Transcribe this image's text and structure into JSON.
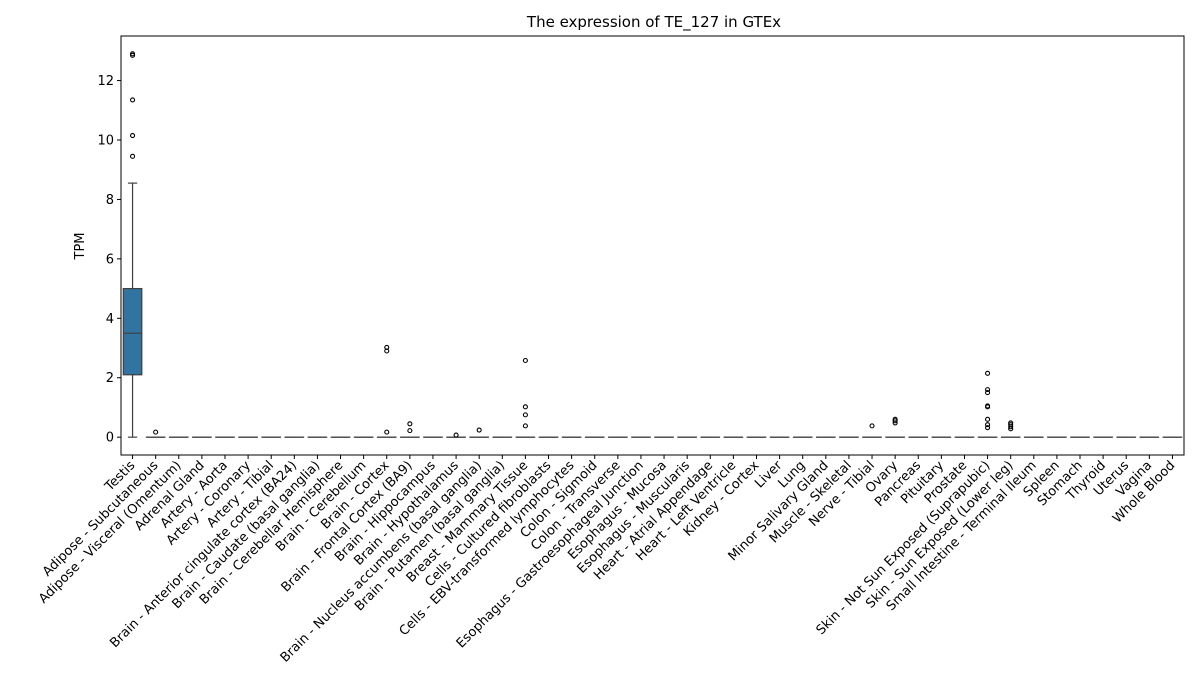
{
  "chart_data": {
    "type": "box",
    "title": "The expression of TE_127 in GTEx",
    "xlabel": "",
    "ylabel": "TPM",
    "ylim": [
      -0.6,
      13.5
    ],
    "yticks": [
      0,
      2,
      4,
      6,
      8,
      10,
      12
    ],
    "grid": false,
    "legend": "none",
    "colors": {
      "box_fill": "#3274a1",
      "box_edge": "#3f3f3f",
      "median": "#3f3f3f",
      "flier": "#000000"
    },
    "categories": [
      "Testis",
      "Adipose - Subcutaneous",
      "Adipose - Visceral (Omentum)",
      "Adrenal Gland",
      "Artery - Aorta",
      "Artery - Coronary",
      "Artery - Tibial",
      "Brain - Anterior cingulate cortex (BA24)",
      "Brain - Caudate (basal ganglia)",
      "Brain - Cerebellar Hemisphere",
      "Brain - Cerebellum",
      "Brain - Cortex",
      "Brain - Frontal Cortex (BA9)",
      "Brain - Hippocampus",
      "Brain - Hypothalamus",
      "Brain - Nucleus accumbens (basal ganglia)",
      "Brain - Putamen (basal ganglia)",
      "Breast - Mammary Tissue",
      "Cells - Cultured fibroblasts",
      "Cells - EBV-transformed lymphocytes",
      "Colon - Sigmoid",
      "Colon - Transverse",
      "Esophagus - Gastroesophageal Junction",
      "Esophagus - Mucosa",
      "Esophagus - Muscularis",
      "Heart - Atrial Appendage",
      "Heart - Left Ventricle",
      "Kidney - Cortex",
      "Liver",
      "Lung",
      "Minor Salivary Gland",
      "Muscle - Skeletal",
      "Nerve - Tibial",
      "Ovary",
      "Pancreas",
      "Pituitary",
      "Prostate",
      "Skin - Not Sun Exposed (Suprapubic)",
      "Skin - Sun Exposed (Lower leg)",
      "Small Intestine - Terminal Ileum",
      "Spleen",
      "Stomach",
      "Thyroid",
      "Uterus",
      "Vagina",
      "Whole Blood"
    ],
    "boxes": [
      {
        "q1": 2.1,
        "median": 3.5,
        "q3": 5.0,
        "whisker_low": 0.0,
        "whisker_high": 8.55,
        "fliers": [
          9.45,
          10.15,
          11.35,
          12.85,
          12.9
        ]
      },
      {
        "q1": 0,
        "median": 0,
        "q3": 0,
        "whisker_low": 0,
        "whisker_high": 0,
        "fliers": [
          0.17
        ]
      },
      {
        "q1": 0,
        "median": 0,
        "q3": 0,
        "whisker_low": 0,
        "whisker_high": 0,
        "fliers": []
      },
      {
        "q1": 0,
        "median": 0,
        "q3": 0,
        "whisker_low": 0,
        "whisker_high": 0,
        "fliers": []
      },
      {
        "q1": 0,
        "median": 0,
        "q3": 0,
        "whisker_low": 0,
        "whisker_high": 0,
        "fliers": []
      },
      {
        "q1": 0,
        "median": 0,
        "q3": 0,
        "whisker_low": 0,
        "whisker_high": 0,
        "fliers": []
      },
      {
        "q1": 0,
        "median": 0,
        "q3": 0,
        "whisker_low": 0,
        "whisker_high": 0,
        "fliers": []
      },
      {
        "q1": 0,
        "median": 0,
        "q3": 0,
        "whisker_low": 0,
        "whisker_high": 0,
        "fliers": []
      },
      {
        "q1": 0,
        "median": 0,
        "q3": 0,
        "whisker_low": 0,
        "whisker_high": 0,
        "fliers": []
      },
      {
        "q1": 0,
        "median": 0,
        "q3": 0,
        "whisker_low": 0,
        "whisker_high": 0,
        "fliers": []
      },
      {
        "q1": 0,
        "median": 0,
        "q3": 0,
        "whisker_low": 0,
        "whisker_high": 0,
        "fliers": []
      },
      {
        "q1": 0,
        "median": 0,
        "q3": 0,
        "whisker_low": 0,
        "whisker_high": 0,
        "fliers": [
          0.17,
          2.9,
          3.02
        ]
      },
      {
        "q1": 0,
        "median": 0,
        "q3": 0,
        "whisker_low": 0,
        "whisker_high": 0,
        "fliers": [
          0.22,
          0.45
        ]
      },
      {
        "q1": 0,
        "median": 0,
        "q3": 0,
        "whisker_low": 0,
        "whisker_high": 0,
        "fliers": []
      },
      {
        "q1": 0,
        "median": 0,
        "q3": 0,
        "whisker_low": 0,
        "whisker_high": 0,
        "fliers": [
          0.07
        ]
      },
      {
        "q1": 0,
        "median": 0,
        "q3": 0,
        "whisker_low": 0,
        "whisker_high": 0,
        "fliers": [
          0.24
        ]
      },
      {
        "q1": 0,
        "median": 0,
        "q3": 0,
        "whisker_low": 0,
        "whisker_high": 0,
        "fliers": []
      },
      {
        "q1": 0,
        "median": 0,
        "q3": 0,
        "whisker_low": 0,
        "whisker_high": 0,
        "fliers": [
          0.38,
          0.75,
          1.02,
          2.58
        ]
      },
      {
        "q1": 0,
        "median": 0,
        "q3": 0,
        "whisker_low": 0,
        "whisker_high": 0,
        "fliers": []
      },
      {
        "q1": 0,
        "median": 0,
        "q3": 0,
        "whisker_low": 0,
        "whisker_high": 0,
        "fliers": []
      },
      {
        "q1": 0,
        "median": 0,
        "q3": 0,
        "whisker_low": 0,
        "whisker_high": 0,
        "fliers": []
      },
      {
        "q1": 0,
        "median": 0,
        "q3": 0,
        "whisker_low": 0,
        "whisker_high": 0,
        "fliers": []
      },
      {
        "q1": 0,
        "median": 0,
        "q3": 0,
        "whisker_low": 0,
        "whisker_high": 0,
        "fliers": []
      },
      {
        "q1": 0,
        "median": 0,
        "q3": 0,
        "whisker_low": 0,
        "whisker_high": 0,
        "fliers": []
      },
      {
        "q1": 0,
        "median": 0,
        "q3": 0,
        "whisker_low": 0,
        "whisker_high": 0,
        "fliers": []
      },
      {
        "q1": 0,
        "median": 0,
        "q3": 0,
        "whisker_low": 0,
        "whisker_high": 0,
        "fliers": []
      },
      {
        "q1": 0,
        "median": 0,
        "q3": 0,
        "whisker_low": 0,
        "whisker_high": 0,
        "fliers": []
      },
      {
        "q1": 0,
        "median": 0,
        "q3": 0,
        "whisker_low": 0,
        "whisker_high": 0,
        "fliers": []
      },
      {
        "q1": 0,
        "median": 0,
        "q3": 0,
        "whisker_low": 0,
        "whisker_high": 0,
        "fliers": []
      },
      {
        "q1": 0,
        "median": 0,
        "q3": 0,
        "whisker_low": 0,
        "whisker_high": 0,
        "fliers": []
      },
      {
        "q1": 0,
        "median": 0,
        "q3": 0,
        "whisker_low": 0,
        "whisker_high": 0,
        "fliers": []
      },
      {
        "q1": 0,
        "median": 0,
        "q3": 0,
        "whisker_low": 0,
        "whisker_high": 0,
        "fliers": []
      },
      {
        "q1": 0,
        "median": 0,
        "q3": 0,
        "whisker_low": 0,
        "whisker_high": 0,
        "fliers": [
          0.38
        ]
      },
      {
        "q1": 0,
        "median": 0,
        "q3": 0,
        "whisker_low": 0,
        "whisker_high": 0,
        "fliers": [
          0.48,
          0.55,
          0.6
        ]
      },
      {
        "q1": 0,
        "median": 0,
        "q3": 0,
        "whisker_low": 0,
        "whisker_high": 0,
        "fliers": []
      },
      {
        "q1": 0,
        "median": 0,
        "q3": 0,
        "whisker_low": 0,
        "whisker_high": 0,
        "fliers": []
      },
      {
        "q1": 0,
        "median": 0,
        "q3": 0,
        "whisker_low": 0,
        "whisker_high": 0,
        "fliers": []
      },
      {
        "q1": 0,
        "median": 0,
        "q3": 0,
        "whisker_low": 0,
        "whisker_high": 0,
        "fliers": [
          0.32,
          0.42,
          0.6,
          1.02,
          1.05,
          1.5,
          1.6,
          2.15
        ]
      },
      {
        "q1": 0,
        "median": 0,
        "q3": 0,
        "whisker_low": 0,
        "whisker_high": 0,
        "fliers": [
          0.28,
          0.35,
          0.42,
          0.48
        ]
      },
      {
        "q1": 0,
        "median": 0,
        "q3": 0,
        "whisker_low": 0,
        "whisker_high": 0,
        "fliers": []
      },
      {
        "q1": 0,
        "median": 0,
        "q3": 0,
        "whisker_low": 0,
        "whisker_high": 0,
        "fliers": []
      },
      {
        "q1": 0,
        "median": 0,
        "q3": 0,
        "whisker_low": 0,
        "whisker_high": 0,
        "fliers": []
      },
      {
        "q1": 0,
        "median": 0,
        "q3": 0,
        "whisker_low": 0,
        "whisker_high": 0,
        "fliers": []
      },
      {
        "q1": 0,
        "median": 0,
        "q3": 0,
        "whisker_low": 0,
        "whisker_high": 0,
        "fliers": []
      },
      {
        "q1": 0,
        "median": 0,
        "q3": 0,
        "whisker_low": 0,
        "whisker_high": 0,
        "fliers": []
      },
      {
        "q1": 0,
        "median": 0,
        "q3": 0,
        "whisker_low": 0,
        "whisker_high": 0,
        "fliers": []
      }
    ]
  }
}
